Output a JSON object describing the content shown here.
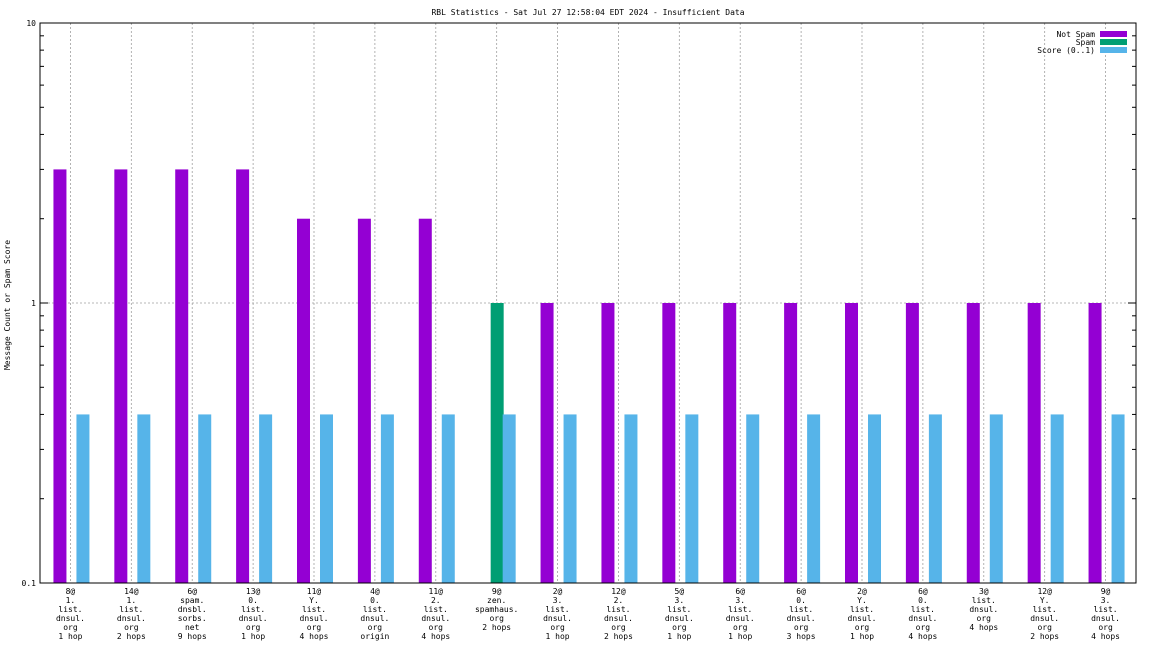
{
  "chart_data": {
    "type": "bar",
    "title": "RBL Statistics - Sat Jul 27 12:58:04 EDT 2024 - Insufficient Data",
    "xlabel": "",
    "ylabel": "Message Count or Spam Score",
    "yscale": "log",
    "ylim": [
      0.1,
      10
    ],
    "yticks": [
      "10",
      "1",
      "0.1"
    ],
    "grid": true,
    "legend_position": "top-right",
    "categories": [
      [
        "8@",
        "1.",
        "list.",
        "dnsul.",
        "org",
        "1 hop"
      ],
      [
        "14@",
        "1.",
        "list.",
        "dnsul.",
        "org",
        "2 hops"
      ],
      [
        "6@",
        "spam.",
        "dnsbl.",
        "sorbs.",
        "net",
        "9 hops"
      ],
      [
        "13@",
        "0.",
        "list.",
        "dnsul.",
        "org",
        "1 hop"
      ],
      [
        "11@",
        "Y.",
        "list.",
        "dnsul.",
        "org",
        "4 hops"
      ],
      [
        "4@",
        "0.",
        "list.",
        "dnsul.",
        "org",
        "origin"
      ],
      [
        "11@",
        "2.",
        "list.",
        "dnsul.",
        "org",
        "4 hops"
      ],
      [
        "9@",
        "zen.",
        "spamhaus.",
        "org",
        "2 hops"
      ],
      [
        "2@",
        "3.",
        "list.",
        "dnsul.",
        "org",
        "1 hop"
      ],
      [
        "12@",
        "2.",
        "list.",
        "dnsul.",
        "org",
        "2 hops"
      ],
      [
        "5@",
        "3.",
        "list.",
        "dnsul.",
        "org",
        "1 hop"
      ],
      [
        "6@",
        "3.",
        "list.",
        "dnsul.",
        "org",
        "1 hop"
      ],
      [
        "6@",
        "0.",
        "list.",
        "dnsul.",
        "org",
        "3 hops"
      ],
      [
        "2@",
        "Y.",
        "list.",
        "dnsul.",
        "org",
        "1 hop"
      ],
      [
        "6@",
        "0.",
        "list.",
        "dnsul.",
        "org",
        "4 hops"
      ],
      [
        "3@",
        "list.",
        "dnsul.",
        "org",
        "4 hops"
      ],
      [
        "12@",
        "Y.",
        "list.",
        "dnsul.",
        "org",
        "2 hops"
      ],
      [
        "9@",
        "3.",
        "list.",
        "dnsul.",
        "org",
        "4 hops"
      ]
    ],
    "series": [
      {
        "name": "Not Spam",
        "color": "#9400d3",
        "values": [
          3,
          3,
          3,
          3,
          2,
          2,
          2,
          0,
          1,
          1,
          1,
          1,
          1,
          1,
          1,
          1,
          1,
          1
        ]
      },
      {
        "name": "Spam",
        "color": "#009e73",
        "values": [
          0,
          0,
          0,
          0,
          0,
          0,
          0,
          1,
          0,
          0,
          0,
          0,
          0,
          0,
          0,
          0,
          0,
          0
        ]
      },
      {
        "name": "Score (0..1)",
        "color": "#56b4e9",
        "values": [
          0.4,
          0.4,
          0.4,
          0.4,
          0.4,
          0.4,
          0.4,
          0.4,
          0.4,
          0.4,
          0.4,
          0.4,
          0.4,
          0.4,
          0.4,
          0.4,
          0.4,
          0.4
        ]
      }
    ]
  }
}
